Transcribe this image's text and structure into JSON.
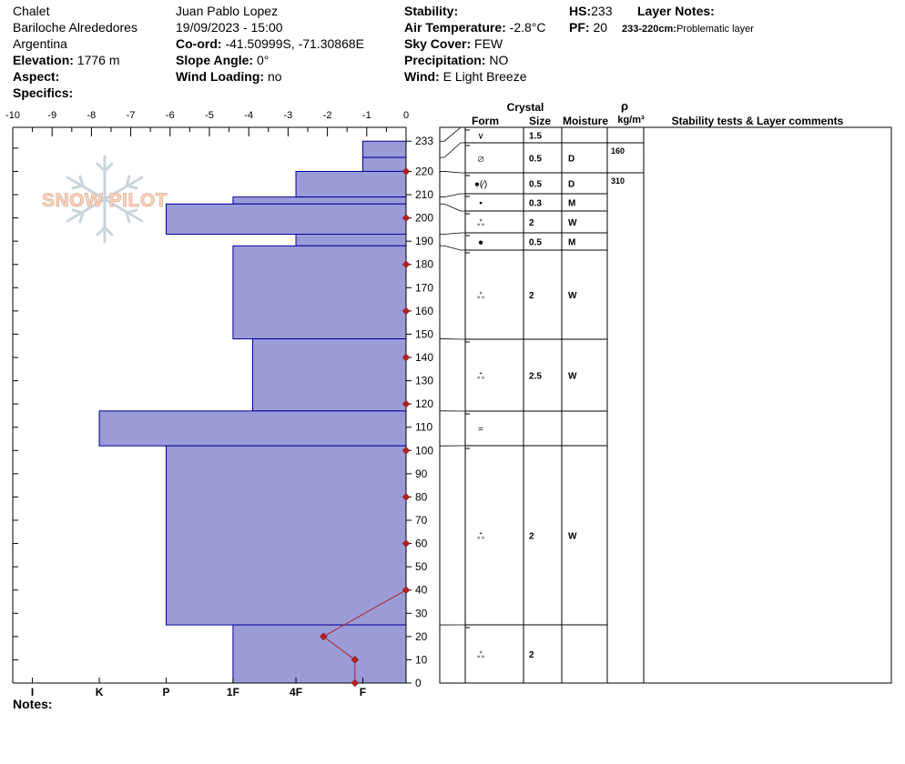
{
  "header": {
    "location": "Chalet",
    "region": "Bariloche Alrededores",
    "country": "Argentina",
    "elevation_label": "Elevation:",
    "elevation_value": "1776 m",
    "aspect_label": "Aspect:",
    "aspect_value": "",
    "specifics_label": "Specifics:",
    "specifics_value": "",
    "observer": "Juan Pablo  Lopez",
    "datetime": "19/09/2023 - 15:00",
    "coord_label": "Co-ord:",
    "coord_value": "-41.50999S, -71.30868E",
    "slope_label": "Slope Angle:",
    "slope_value": "0°",
    "wind_loading_label": "Wind Loading:",
    "wind_loading_value": "no",
    "stability_label": "Stability:",
    "stability_value": "",
    "air_temp_label": "Air Temperature:",
    "air_temp_value": "-2.8°C",
    "sky_label": "Sky Cover:",
    "sky_value": "FEW",
    "precip_label": "Precipitation:",
    "precip_value": "NO",
    "wind_label": "Wind:",
    "wind_value": "E Light Breeze",
    "hs_label": "HS:",
    "hs_value": "233",
    "pf_label": "PF:",
    "pf_value": "20",
    "layer_notes_label": "Layer Notes:",
    "layer_note_range": "233-220cm:",
    "layer_note_text": "Problematic layer",
    "notes_label": "Notes:"
  },
  "watermark": "SNOW PILOT",
  "table_headers": {
    "crystal": "Crystal",
    "form": "Form",
    "size": "Size",
    "moisture": "Moisture",
    "rho": "ρ",
    "density_unit": "kg/m³",
    "stability_comments": "Stability tests & Layer comments"
  },
  "colors": {
    "hardness_fill": "#9b9bd8",
    "hardness_stroke": "#00009c",
    "temperature": "#b22222"
  },
  "chart_data": {
    "type": "snow_profile",
    "height_axis": {
      "range": [
        0,
        233
      ],
      "ticks": [
        0,
        10,
        20,
        30,
        40,
        50,
        60,
        70,
        80,
        90,
        100,
        110,
        120,
        130,
        140,
        150,
        160,
        170,
        180,
        190,
        200,
        210,
        220,
        233
      ],
      "unit": "cm"
    },
    "temperature_axis": {
      "range": [
        -10,
        0
      ],
      "ticks": [
        -10,
        -9,
        -8,
        -7,
        -6,
        -5,
        -4,
        -3,
        -2,
        -1,
        0
      ]
    },
    "hardness_axis": {
      "labels": [
        "I",
        "K",
        "P",
        "1F",
        "4F",
        "F"
      ],
      "temperature_positions": [
        -9.5,
        -7.8,
        -6.1,
        -4.4,
        -2.8,
        -1.1
      ]
    },
    "hardness_layers": [
      {
        "bottom": 226,
        "top": 233,
        "temp_extent": -1.1
      },
      {
        "bottom": 220,
        "top": 226,
        "temp_extent": -1.1
      },
      {
        "bottom": 209,
        "top": 220,
        "temp_extent": -2.8
      },
      {
        "bottom": 206,
        "top": 209,
        "temp_extent": -4.4
      },
      {
        "bottom": 193,
        "top": 206,
        "temp_extent": -6.1
      },
      {
        "bottom": 188,
        "top": 193,
        "temp_extent": -2.8
      },
      {
        "bottom": 148,
        "top": 188,
        "temp_extent": -4.4
      },
      {
        "bottom": 117,
        "top": 148,
        "temp_extent": -3.9
      },
      {
        "bottom": 102,
        "top": 117,
        "temp_extent": -7.8
      },
      {
        "bottom": 25,
        "top": 102,
        "temp_extent": -6.1
      },
      {
        "bottom": 0,
        "top": 25,
        "temp_extent": -4.4
      }
    ],
    "temperature_profile": [
      {
        "height": 0,
        "temp": -1.3
      },
      {
        "height": 10,
        "temp": -1.3
      },
      {
        "height": 20,
        "temp": -2.1
      },
      {
        "height": 40,
        "temp": 0
      },
      {
        "height": 60,
        "temp": 0
      },
      {
        "height": 80,
        "temp": 0
      },
      {
        "height": 100,
        "temp": 0
      },
      {
        "height": 120,
        "temp": 0
      },
      {
        "height": 140,
        "temp": 0
      },
      {
        "height": 160,
        "temp": 0
      },
      {
        "height": 180,
        "temp": 0
      },
      {
        "height": 200,
        "temp": 0
      },
      {
        "height": 220,
        "temp": 0
      }
    ],
    "table_layers": [
      {
        "bottom": 226,
        "top": 233,
        "form": "∨",
        "size": "1.5",
        "moisture": "",
        "density": ""
      },
      {
        "bottom": 220,
        "top": 226,
        "form": "⧄",
        "size": "0.5",
        "moisture": "D",
        "density": "160"
      },
      {
        "bottom": 209,
        "top": 220,
        "form": "●(⁄)",
        "size": "0.5",
        "moisture": "D",
        "density": "310"
      },
      {
        "bottom": 206,
        "top": 209,
        "form": "•",
        "size": "0.3",
        "moisture": "M",
        "density": ""
      },
      {
        "bottom": 193,
        "top": 206,
        "form": "ஃ",
        "size": "2",
        "moisture": "W",
        "density": ""
      },
      {
        "bottom": 188,
        "top": 193,
        "form": "●",
        "size": "0.5",
        "moisture": "M",
        "density": ""
      },
      {
        "bottom": 148,
        "top": 188,
        "form": "ஃ",
        "size": "2",
        "moisture": "W",
        "density": ""
      },
      {
        "bottom": 117,
        "top": 148,
        "form": "ஃ",
        "size": "2.5",
        "moisture": "W",
        "density": ""
      },
      {
        "bottom": 102,
        "top": 117,
        "form": "=",
        "size": "",
        "moisture": "",
        "density": ""
      },
      {
        "bottom": 25,
        "top": 102,
        "form": "ஃ",
        "size": "2",
        "moisture": "W",
        "density": ""
      },
      {
        "bottom": 0,
        "top": 25,
        "form": "ஃ",
        "size": "2",
        "moisture": "",
        "density": ""
      }
    ]
  }
}
